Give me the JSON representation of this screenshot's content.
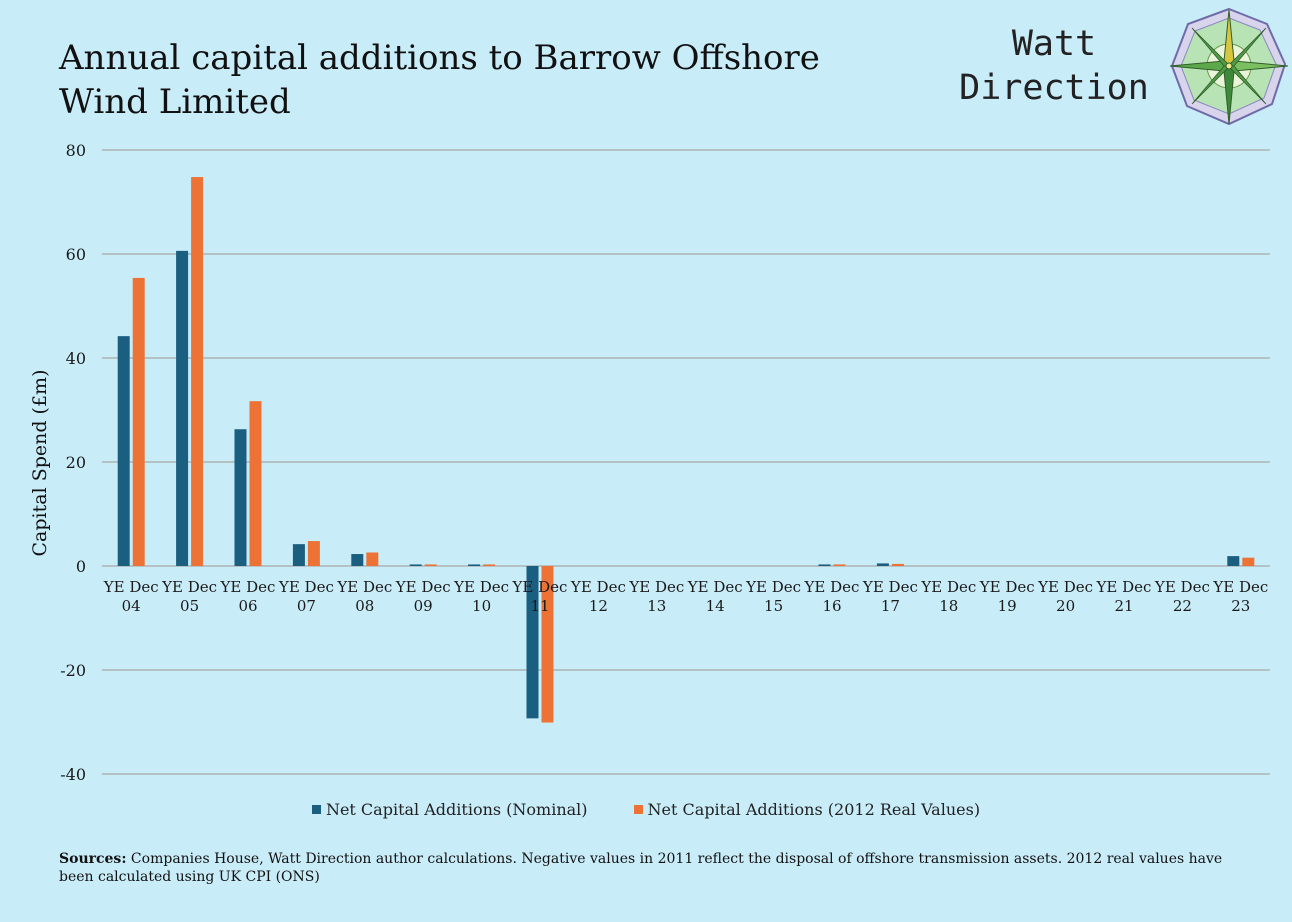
{
  "header": {
    "title": "Annual capital additions to Barrow Offshore Wind Limited",
    "brand_line1": "Watt",
    "brand_line2": "Direction",
    "logo_icon": "compass-rose-icon"
  },
  "chart_data": {
    "type": "bar",
    "title": "Annual capital additions to Barrow Offshore Wind Limited",
    "ylabel": "Capital Spend (£m)",
    "xlabel": "",
    "ylim": [
      -40,
      80
    ],
    "yticks": [
      80,
      60,
      40,
      20,
      0,
      -20,
      -40
    ],
    "ytick_labels": [
      "80",
      "60",
      "40",
      "20",
      "0",
      "-20",
      "-40"
    ],
    "grid": true,
    "legend_position": "bottom",
    "categories": [
      [
        "YE Dec",
        "04"
      ],
      [
        "YE Dec",
        "05"
      ],
      [
        "YE Dec",
        "06"
      ],
      [
        "YE Dec",
        "07"
      ],
      [
        "YE Dec",
        "08"
      ],
      [
        "YE Dec",
        "09"
      ],
      [
        "YE Dec",
        "10"
      ],
      [
        "YE Dec",
        "11"
      ],
      [
        "YE Dec",
        "12"
      ],
      [
        "YE Dec",
        "13"
      ],
      [
        "YE Dec",
        "14"
      ],
      [
        "YE Dec",
        "15"
      ],
      [
        "YE Dec",
        "16"
      ],
      [
        "YE Dec",
        "17"
      ],
      [
        "YE Dec",
        "18"
      ],
      [
        "YE Dec",
        "19"
      ],
      [
        "YE Dec",
        "20"
      ],
      [
        "YE Dec",
        "21"
      ],
      [
        "YE Dec",
        "22"
      ],
      [
        "YE Dec",
        "23"
      ]
    ],
    "series": [
      {
        "name": "Net Capital Additions (Nominal)",
        "color": "#1a5e80",
        "values": [
          44.2,
          60.6,
          26.3,
          4.2,
          2.3,
          0.3,
          0.3,
          -29.3,
          0,
          0,
          0,
          0,
          0.3,
          0.5,
          0,
          0,
          0,
          0,
          0,
          1.9
        ]
      },
      {
        "name": "Net Capital Additions (2012 Real Values)",
        "color": "#ec7335",
        "values": [
          55.4,
          74.8,
          31.7,
          4.8,
          2.6,
          0.3,
          0.3,
          -30.1,
          0,
          0,
          0,
          0,
          0.3,
          0.4,
          0,
          0,
          0,
          0,
          0,
          1.6
        ]
      }
    ],
    "colors": {
      "gridline": "#a9a9a9",
      "background": "#c9ecf9"
    }
  },
  "footer": {
    "sources_label": "Sources:",
    "sources_text": " Companies House, Watt Direction author calculations. Negative values in 2011 reflect the disposal of offshore transmission assets. 2012 real values have been calculated using UK CPI (ONS)"
  }
}
